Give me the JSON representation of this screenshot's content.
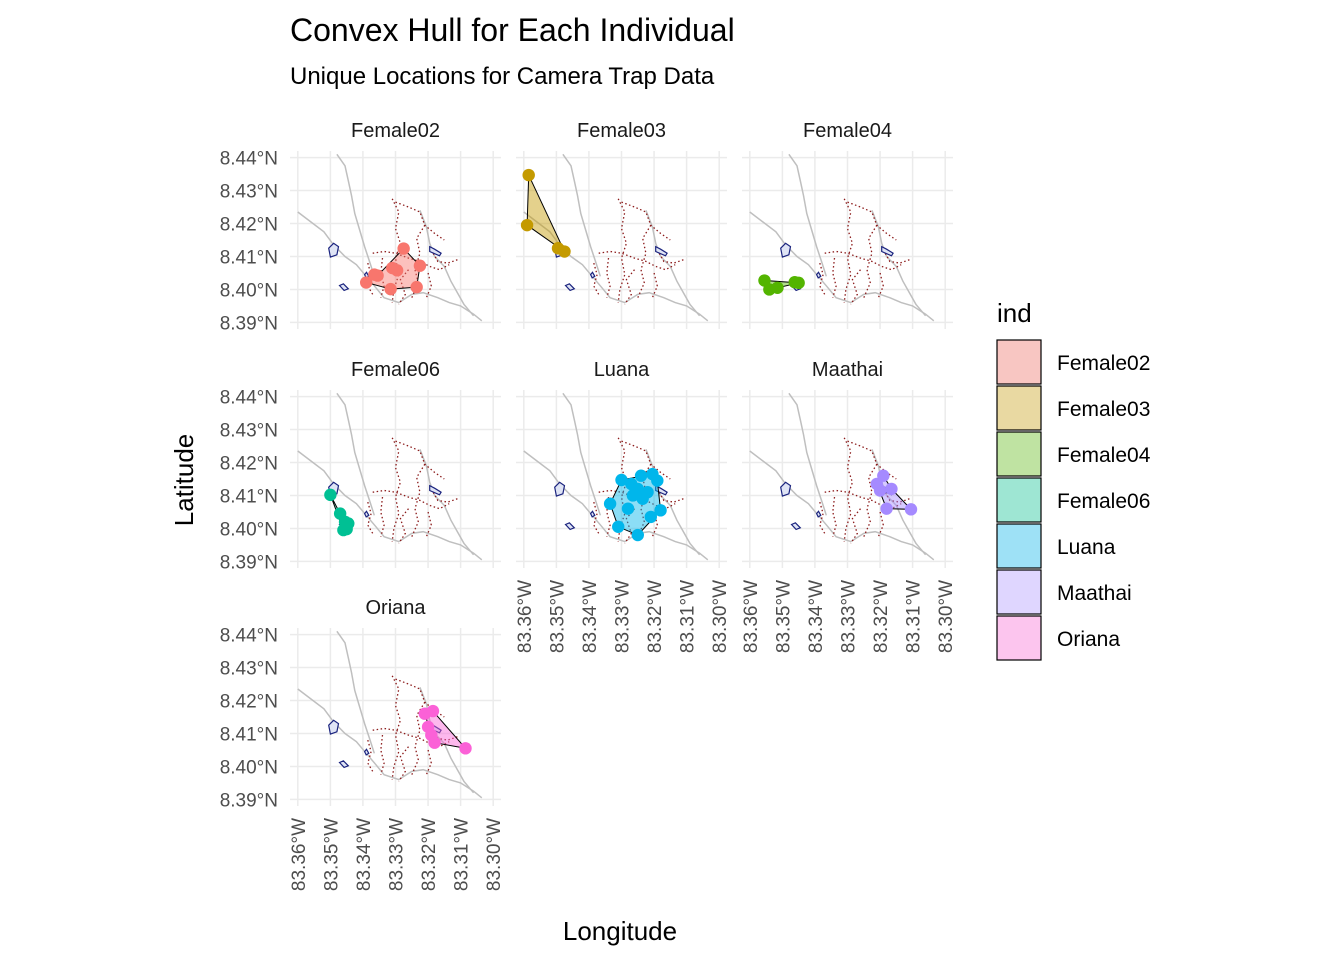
{
  "chart_data": {
    "type": "map",
    "title": "Convex Hull for Each Individual",
    "subtitle": "Unique Locations for Camera Trap Data",
    "xlabel": "Longitude",
    "ylabel": "Latitude",
    "xlim": [
      -83.36,
      -83.3
    ],
    "ylim": [
      8.39,
      8.44
    ],
    "x_ticks": [
      -83.36,
      -83.35,
      -83.34,
      -83.33,
      -83.32,
      -83.31,
      -83.3
    ],
    "x_tick_labels": [
      "83.36°W",
      "83.35°W",
      "83.34°W",
      "83.33°W",
      "83.32°W",
      "83.31°W",
      "83.30°W"
    ],
    "y_ticks": [
      8.39,
      8.4,
      8.41,
      8.42,
      8.43,
      8.44
    ],
    "y_tick_labels": [
      "8.39°N",
      "8.40°N",
      "8.41°N",
      "8.42°N",
      "8.43°N",
      "8.44°N"
    ],
    "legend_title": "ind",
    "legend_position": "right",
    "grid": true,
    "series": [
      {
        "name": "Female02",
        "color": "#F8766D",
        "fill": "#F8C6C2",
        "points": [
          [
            -83.339,
            8.4021
          ],
          [
            -83.3355,
            8.4042
          ],
          [
            -83.3315,
            8.4001
          ],
          [
            -83.3275,
            8.4124
          ],
          [
            -83.3225,
            8.4072
          ],
          [
            -83.3235,
            8.4007
          ],
          [
            -83.3295,
            8.4058
          ],
          [
            -83.331,
            8.4065
          ],
          [
            -83.3365,
            8.4045
          ]
        ],
        "hull": [
          [
            -83.339,
            8.4021
          ],
          [
            -83.3355,
            8.4042
          ],
          [
            -83.3275,
            8.4124
          ],
          [
            -83.3225,
            8.4072
          ],
          [
            -83.3235,
            8.4007
          ],
          [
            -83.3315,
            8.4001
          ]
        ]
      },
      {
        "name": "Female03",
        "color": "#C49A00",
        "fill": "#E9D9A2",
        "points": [
          [
            -83.3585,
            8.4347
          ],
          [
            -83.359,
            8.4195
          ],
          [
            -83.3475,
            8.4115
          ],
          [
            -83.3495,
            8.4125
          ]
        ],
        "hull": [
          [
            -83.3585,
            8.4347
          ],
          [
            -83.3475,
            8.4115
          ],
          [
            -83.359,
            8.4195
          ]
        ]
      },
      {
        "name": "Female04",
        "color": "#53B400",
        "fill": "#BFE3A2",
        "points": [
          [
            -83.3555,
            8.4027
          ],
          [
            -83.354,
            8.4
          ],
          [
            -83.3515,
            8.4005
          ],
          [
            -83.345,
            8.402
          ],
          [
            -83.3462,
            8.4022
          ]
        ],
        "hull": [
          [
            -83.3555,
            8.4027
          ],
          [
            -83.354,
            8.4
          ],
          [
            -83.3515,
            8.4005
          ],
          [
            -83.345,
            8.402
          ]
        ]
      },
      {
        "name": "Female06",
        "color": "#00C094",
        "fill": "#9EE6D3",
        "points": [
          [
            -83.35,
            8.4102
          ],
          [
            -83.347,
            8.4045
          ],
          [
            -83.3455,
            8.402
          ],
          [
            -83.3445,
            8.4015
          ],
          [
            -83.346,
            8.3995
          ],
          [
            -83.345,
            8.3998
          ]
        ],
        "hull": [
          [
            -83.35,
            8.4102
          ],
          [
            -83.347,
            8.4045
          ],
          [
            -83.3445,
            8.4015
          ],
          [
            -83.346,
            8.3995
          ]
        ]
      },
      {
        "name": "Luana",
        "color": "#00B6EB",
        "fill": "#9EE1F6",
        "points": [
          [
            -83.3335,
            8.4075
          ],
          [
            -83.33,
            8.4147
          ],
          [
            -83.327,
            8.4135
          ],
          [
            -83.324,
            8.416
          ],
          [
            -83.3205,
            8.4165
          ],
          [
            -83.319,
            8.4145
          ],
          [
            -83.318,
            8.4055
          ],
          [
            -83.321,
            8.4035
          ],
          [
            -83.325,
            8.398
          ],
          [
            -83.331,
            8.4005
          ],
          [
            -83.3265,
            8.41
          ],
          [
            -83.3235,
            8.409
          ],
          [
            -83.328,
            8.406
          ],
          [
            -83.325,
            8.412
          ],
          [
            -83.322,
            8.411
          ]
        ],
        "hull": [
          [
            -83.3335,
            8.4075
          ],
          [
            -83.33,
            8.4147
          ],
          [
            -83.3205,
            8.4165
          ],
          [
            -83.319,
            8.4145
          ],
          [
            -83.318,
            8.4055
          ],
          [
            -83.325,
            8.398
          ],
          [
            -83.331,
            8.4005
          ]
        ]
      },
      {
        "name": "Maathai",
        "color": "#A58AFF",
        "fill": "#DFD6FF",
        "points": [
          [
            -83.321,
            8.4135
          ],
          [
            -83.319,
            8.416
          ],
          [
            -83.3165,
            8.412
          ],
          [
            -83.318,
            8.406
          ],
          [
            -83.3105,
            8.4058
          ],
          [
            -83.32,
            8.4115
          ]
        ],
        "hull": [
          [
            -83.321,
            8.4135
          ],
          [
            -83.319,
            8.416
          ],
          [
            -83.3165,
            8.412
          ],
          [
            -83.3105,
            8.4058
          ],
          [
            -83.318,
            8.406
          ]
        ]
      },
      {
        "name": "Oriana",
        "color": "#FB61D7",
        "fill": "#FCC5EE",
        "points": [
          [
            -83.321,
            8.416
          ],
          [
            -83.3185,
            8.4168
          ],
          [
            -83.319,
            8.4095
          ],
          [
            -83.318,
            8.4072
          ],
          [
            -83.3085,
            8.4055
          ],
          [
            -83.32,
            8.412
          ]
        ],
        "hull": [
          [
            -83.321,
            8.416
          ],
          [
            -83.3185,
            8.4168
          ],
          [
            -83.3085,
            8.4055
          ],
          [
            -83.318,
            8.4072
          ],
          [
            -83.319,
            8.4095
          ]
        ]
      }
    ],
    "panel_order": [
      "Female02",
      "Female03",
      "Female04",
      "Female06",
      "Luana",
      "Maathai",
      "Oriana"
    ]
  },
  "basemap": {
    "river": [
      [
        -83.36,
        8.4235
      ],
      [
        -83.356,
        8.4205
      ],
      [
        -83.352,
        8.4175
      ],
      [
        -83.349,
        8.4135
      ],
      [
        -83.3455,
        8.41
      ],
      [
        -83.342,
        8.4075
      ],
      [
        -83.339,
        8.404
      ],
      [
        -83.336,
        8.4005
      ],
      [
        -83.3335,
        8.3975
      ],
      [
        -83.329,
        8.396
      ],
      [
        -83.325,
        8.3985
      ],
      [
        -83.3215,
        8.399
      ],
      [
        -83.317,
        8.3975
      ],
      [
        -83.3135,
        8.396
      ],
      [
        -83.31,
        8.395
      ],
      [
        -83.306,
        8.3925
      ],
      [
        -83.3035,
        8.3905
      ]
    ],
    "stream": [
      [
        -83.348,
        8.441
      ],
      [
        -83.3455,
        8.4375
      ],
      [
        -83.3445,
        8.433
      ],
      [
        -83.3435,
        8.4285
      ],
      [
        -83.3425,
        8.423
      ],
      [
        -83.341,
        8.418
      ],
      [
        -83.3395,
        8.413
      ],
      [
        -83.338,
        8.4085
      ],
      [
        -83.3365,
        8.404
      ]
    ],
    "ridge": [
      [
        -83.3225,
        8.424
      ],
      [
        -83.3205,
        8.419
      ],
      [
        -83.3195,
        8.414
      ],
      [
        -83.318,
        8.41
      ],
      [
        -83.315,
        8.407
      ],
      [
        -83.313,
        8.4025
      ],
      [
        -83.311,
        8.399
      ],
      [
        -83.309,
        8.3955
      ],
      [
        -83.306,
        8.392
      ]
    ],
    "trails": [
      [
        [
          -83.331,
          8.4275
        ],
        [
          -83.329,
          8.4235
        ],
        [
          -83.33,
          8.4185
        ],
        [
          -83.3285,
          8.414
        ],
        [
          -83.33,
          8.4095
        ],
        [
          -83.329,
          8.4045
        ],
        [
          -83.3305,
          8.4
        ],
        [
          -83.331,
          8.396
        ]
      ],
      [
        [
          -83.33,
          8.4265
        ],
        [
          -83.326,
          8.425
        ],
        [
          -83.3225,
          8.4235
        ],
        [
          -83.321,
          8.4195
        ],
        [
          -83.318,
          8.417
        ],
        [
          -83.315,
          8.415
        ]
      ],
      [
        [
          -83.337,
          8.411
        ],
        [
          -83.3335,
          8.4115
        ],
        [
          -83.33,
          8.411
        ],
        [
          -83.326,
          8.4095
        ],
        [
          -83.3225,
          8.4085
        ],
        [
          -83.3195,
          8.407
        ],
        [
          -83.3165,
          8.406
        ],
        [
          -83.3135,
          8.4075
        ]
      ],
      [
        [
          -83.321,
          8.4195
        ],
        [
          -83.3235,
          8.4155
        ],
        [
          -83.3225,
          8.411
        ],
        [
          -83.324,
          8.406
        ],
        [
          -83.323,
          8.402
        ],
        [
          -83.325,
          8.3975
        ]
      ],
      [
        [
          -83.326,
          8.406
        ],
        [
          -83.3285,
          8.403
        ],
        [
          -83.327,
          8.3985
        ],
        [
          -83.329,
          8.3955
        ]
      ],
      [
        [
          -83.3385,
          8.408
        ],
        [
          -83.3375,
          8.4045
        ],
        [
          -83.3385,
          8.401
        ],
        [
          -83.337,
          8.3985
        ]
      ],
      [
        [
          -83.334,
          8.4095
        ],
        [
          -83.3345,
          8.405
        ],
        [
          -83.3335,
          8.401
        ],
        [
          -83.3345,
          8.3975
        ]
      ],
      [
        [
          -83.319,
          8.412
        ],
        [
          -83.317,
          8.4085
        ],
        [
          -83.314,
          8.408
        ],
        [
          -83.311,
          8.409
        ]
      ],
      [
        [
          -83.32,
          8.405
        ],
        [
          -83.319,
          8.401
        ],
        [
          -83.3205,
          8.3975
        ]
      ]
    ],
    "polygons": [
      [
        [
          -83.3505,
          8.4125
        ],
        [
          -83.349,
          8.414
        ],
        [
          -83.3475,
          8.413
        ],
        [
          -83.348,
          8.4105
        ],
        [
          -83.35,
          8.4098
        ]
      ],
      [
        [
          -83.3195,
          8.413
        ],
        [
          -83.318,
          8.4122
        ],
        [
          -83.316,
          8.411
        ],
        [
          -83.3165,
          8.4102
        ],
        [
          -83.3195,
          8.4115
        ]
      ],
      [
        [
          -83.3395,
          8.4045
        ],
        [
          -83.3389,
          8.4052
        ],
        [
          -83.3382,
          8.404
        ],
        [
          -83.339,
          8.4035
        ]
      ],
      [
        [
          -83.3472,
          8.4012
        ],
        [
          -83.346,
          8.4017
        ],
        [
          -83.3445,
          8.4002
        ],
        [
          -83.3458,
          8.3997
        ]
      ]
    ]
  }
}
